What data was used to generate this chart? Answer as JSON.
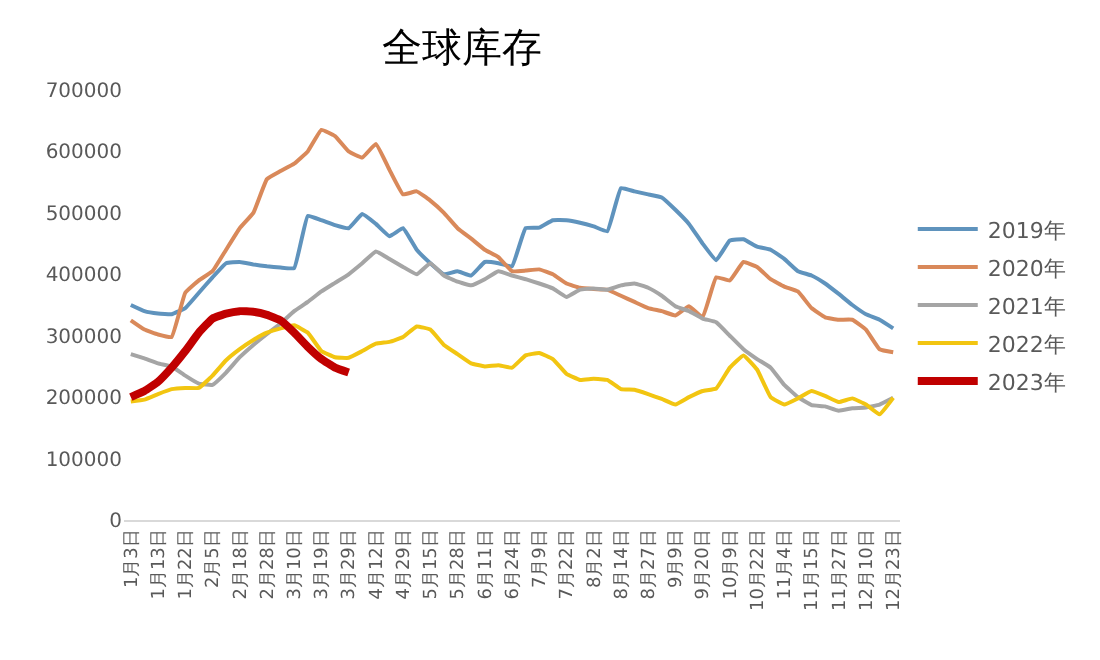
{
  "chart_data": {
    "type": "line",
    "title": "全球库存",
    "categories": [
      "1月3日",
      null,
      "1月13日",
      null,
      "1月22日",
      null,
      "2月5日",
      null,
      "2月18日",
      null,
      "2月28日",
      null,
      "3月10日",
      null,
      "3月19日",
      null,
      "3月29日",
      null,
      "4月12日",
      null,
      "4月29日",
      null,
      "5月15日",
      null,
      "5月28日",
      null,
      "6月11日",
      null,
      "6月24日",
      null,
      "7月9日",
      null,
      "7月22日",
      null,
      "8月2日",
      null,
      "8月14日",
      null,
      "8月27日",
      null,
      "9月9日",
      null,
      "9月20日",
      null,
      "10月9日",
      null,
      "10月22日",
      null,
      "11月4日",
      null,
      "11月15日",
      null,
      "11月27日",
      null,
      "12月10日",
      null,
      "12月23日"
    ],
    "series": [
      {
        "name": "2019年",
        "color": "#5f93bd",
        "values": [
          350000,
          340000,
          336000,
          335000,
          345000,
          370000,
          395000,
          418000,
          420000,
          416000,
          413000,
          411000,
          410000,
          495000,
          488000,
          480000,
          475000,
          498000,
          482000,
          462000,
          475000,
          440000,
          418000,
          400000,
          405000,
          398000,
          420000,
          418000,
          413000,
          475000,
          476000,
          488000,
          488000,
          484000,
          478000,
          470000,
          540000,
          535000,
          530000,
          525000,
          505000,
          482000,
          450000,
          423000,
          455000,
          457000,
          445000,
          440000,
          425000,
          405000,
          398000,
          385000,
          368000,
          350000,
          335000,
          326000,
          312000
        ]
      },
      {
        "name": "2020年",
        "color": "#d9895a",
        "values": [
          325000,
          310000,
          302000,
          298000,
          370000,
          390000,
          405000,
          440000,
          475000,
          500000,
          555000,
          568000,
          580000,
          600000,
          635000,
          625000,
          600000,
          590000,
          612000,
          570000,
          530000,
          535000,
          520000,
          500000,
          475000,
          458000,
          440000,
          428000,
          405000,
          406000,
          408000,
          400000,
          385000,
          378000,
          376000,
          375000,
          365000,
          355000,
          345000,
          340000,
          333000,
          348000,
          330000,
          395000,
          390000,
          420000,
          412000,
          392000,
          380000,
          372000,
          345000,
          330000,
          326000,
          326000,
          310000,
          278000,
          273000
        ]
      },
      {
        "name": "2021年",
        "color": "#a5a5a5",
        "values": [
          270000,
          263000,
          255000,
          250000,
          235000,
          222000,
          220000,
          240000,
          265000,
          285000,
          303000,
          320000,
          340000,
          355000,
          372000,
          386000,
          400000,
          418000,
          437000,
          425000,
          412000,
          400000,
          418000,
          398000,
          388000,
          382000,
          392000,
          405000,
          398000,
          392000,
          385000,
          377000,
          363000,
          375000,
          377000,
          375000,
          382000,
          385000,
          378000,
          365000,
          348000,
          340000,
          328000,
          322000,
          300000,
          278000,
          262000,
          248000,
          220000,
          200000,
          187000,
          185000,
          178000,
          182000,
          183000,
          188000,
          199000
        ]
      },
      {
        "name": "2022年",
        "color": "#f2c511",
        "values": [
          193000,
          196000,
          205000,
          213000,
          215000,
          215000,
          235000,
          260000,
          278000,
          293000,
          305000,
          312000,
          317000,
          305000,
          275000,
          265000,
          264000,
          275000,
          287000,
          290000,
          298000,
          315000,
          310000,
          285000,
          270000,
          255000,
          250000,
          252000,
          248000,
          268000,
          272000,
          262000,
          238000,
          228000,
          230000,
          228000,
          213000,
          212000,
          205000,
          197000,
          188000,
          200000,
          210000,
          214000,
          248000,
          268000,
          245000,
          200000,
          188000,
          198000,
          210000,
          202000,
          192000,
          198000,
          188000,
          172000,
          199000
        ]
      },
      {
        "name": "2023年",
        "color": "#c00000",
        "values": [
          200000,
          210000,
          225000,
          248000,
          275000,
          305000,
          328000,
          336000,
          340000,
          339000,
          334000,
          325000,
          305000,
          282000,
          262000,
          248000,
          240000,
          null,
          null,
          null,
          null,
          null,
          null,
          null,
          null,
          null,
          null,
          null,
          null,
          null,
          null,
          null,
          null,
          null,
          null,
          null,
          null,
          null,
          null,
          null,
          null,
          null,
          null,
          null,
          null,
          null,
          null,
          null,
          null,
          null,
          null,
          null,
          null,
          null,
          null,
          null,
          null
        ]
      }
    ],
    "ylim": [
      0,
      700000
    ],
    "yticks": [
      0,
      100000,
      200000,
      300000,
      400000,
      500000,
      600000,
      700000
    ],
    "grid": false,
    "legend": "right",
    "marker": "none",
    "line_style": "solid"
  }
}
